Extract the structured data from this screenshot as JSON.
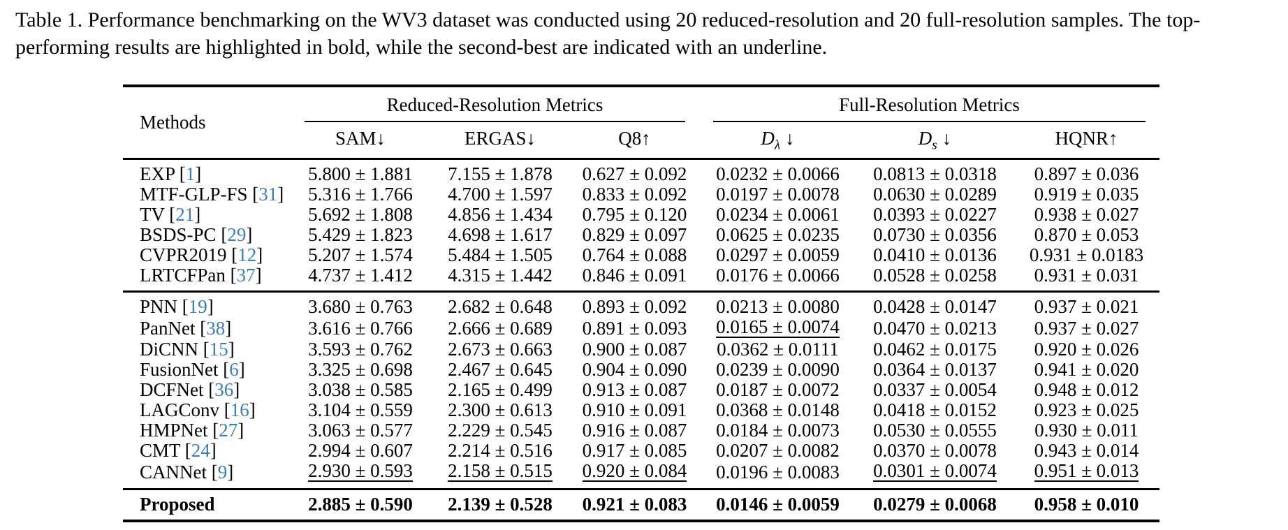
{
  "caption": {
    "text": "Table 1. Performance benchmarking on the WV3 dataset was conducted using 20 reduced-resolution and 20 full-resolution samples. The top-performing results are highlighted in bold, while the second-best are indicated with an underline."
  },
  "table": {
    "col_headers": {
      "methods": "Methods",
      "groups": [
        {
          "label": "Reduced-Resolution Metrics"
        },
        {
          "label": "Full-Resolution Metrics"
        }
      ],
      "metrics": [
        {
          "label": "SAM",
          "arrow": "↓"
        },
        {
          "label": "ERGAS",
          "arrow": "↓"
        },
        {
          "label": "Q8",
          "arrow": "↑"
        },
        {
          "label": "D",
          "sub": "λ",
          "arrow": "↓",
          "italic": true
        },
        {
          "label": "D",
          "sub": "s",
          "arrow": "↓",
          "italic": true
        },
        {
          "label": "HQNR",
          "arrow": "↑"
        }
      ]
    },
    "citation_color": "#3a7dbd",
    "row_groups": [
      {
        "rows": [
          {
            "method": "EXP",
            "cite": "1",
            "values": [
              {
                "v": "5.800 ± 1.881"
              },
              {
                "v": "7.155 ± 1.878"
              },
              {
                "v": "0.627 ± 0.092"
              },
              {
                "v": "0.0232 ± 0.0066"
              },
              {
                "v": "0.0813 ± 0.0318"
              },
              {
                "v": "0.897 ± 0.036"
              }
            ]
          },
          {
            "method": "MTF-GLP-FS",
            "cite": "31",
            "values": [
              {
                "v": "5.316 ± 1.766"
              },
              {
                "v": "4.700 ± 1.597"
              },
              {
                "v": "0.833 ± 0.092"
              },
              {
                "v": "0.0197 ± 0.0078"
              },
              {
                "v": "0.0630 ± 0.0289"
              },
              {
                "v": "0.919 ± 0.035"
              }
            ]
          },
          {
            "method": "TV",
            "cite": "21",
            "values": [
              {
                "v": "5.692 ± 1.808"
              },
              {
                "v": "4.856 ± 1.434"
              },
              {
                "v": "0.795 ± 0.120"
              },
              {
                "v": "0.0234 ± 0.0061"
              },
              {
                "v": "0.0393 ± 0.0227"
              },
              {
                "v": "0.938 ± 0.027"
              }
            ]
          },
          {
            "method": "BSDS-PC",
            "cite": "29",
            "values": [
              {
                "v": "5.429 ± 1.823"
              },
              {
                "v": "4.698 ± 1.617"
              },
              {
                "v": "0.829 ± 0.097"
              },
              {
                "v": "0.0625 ± 0.0235"
              },
              {
                "v": "0.0730 ± 0.0356"
              },
              {
                "v": "0.870 ± 0.053"
              }
            ]
          },
          {
            "method": "CVPR2019",
            "cite": "12",
            "values": [
              {
                "v": "5.207 ± 1.574"
              },
              {
                "v": "5.484 ± 1.505"
              },
              {
                "v": "0.764 ± 0.088"
              },
              {
                "v": "0.0297 ± 0.0059"
              },
              {
                "v": "0.0410 ± 0.0136"
              },
              {
                "v": "0.931 ± 0.0183"
              }
            ]
          },
          {
            "method": "LRTCFPan",
            "cite": "37",
            "values": [
              {
                "v": "4.737 ± 1.412"
              },
              {
                "v": "4.315 ± 1.442"
              },
              {
                "v": "0.846 ± 0.091"
              },
              {
                "v": "0.0176 ± 0.0066"
              },
              {
                "v": "0.0528 ± 0.0258"
              },
              {
                "v": "0.931 ± 0.031"
              }
            ]
          }
        ]
      },
      {
        "rows": [
          {
            "method": "PNN",
            "cite": "19",
            "values": [
              {
                "v": "3.680 ± 0.763"
              },
              {
                "v": "2.682 ± 0.648"
              },
              {
                "v": "0.893 ± 0.092"
              },
              {
                "v": "0.0213 ± 0.0080"
              },
              {
                "v": "0.0428 ± 0.0147"
              },
              {
                "v": "0.937 ± 0.021"
              }
            ]
          },
          {
            "method": "PanNet",
            "cite": "38",
            "values": [
              {
                "v": "3.616 ± 0.766"
              },
              {
                "v": "2.666 ± 0.689"
              },
              {
                "v": "0.891 ± 0.093"
              },
              {
                "v": "0.0165 ± 0.0074",
                "u": true
              },
              {
                "v": "0.0470 ± 0.0213"
              },
              {
                "v": "0.937 ± 0.027"
              }
            ]
          },
          {
            "method": "DiCNN",
            "cite": "15",
            "values": [
              {
                "v": "3.593 ± 0.762"
              },
              {
                "v": "2.673 ± 0.663"
              },
              {
                "v": "0.900 ± 0.087"
              },
              {
                "v": "0.0362 ± 0.0111"
              },
              {
                "v": "0.0462 ± 0.0175"
              },
              {
                "v": "0.920 ± 0.026"
              }
            ]
          },
          {
            "method": "FusionNet",
            "cite": "6",
            "values": [
              {
                "v": "3.325 ± 0.698"
              },
              {
                "v": "2.467 ± 0.645"
              },
              {
                "v": "0.904 ± 0.090"
              },
              {
                "v": "0.0239 ± 0.0090"
              },
              {
                "v": "0.0364 ± 0.0137"
              },
              {
                "v": "0.941 ± 0.020"
              }
            ]
          },
          {
            "method": "DCFNet",
            "cite": "36",
            "values": [
              {
                "v": "3.038 ± 0.585"
              },
              {
                "v": "2.165 ± 0.499"
              },
              {
                "v": "0.913 ± 0.087"
              },
              {
                "v": "0.0187 ± 0.0072"
              },
              {
                "v": "0.0337 ± 0.0054"
              },
              {
                "v": "0.948 ± 0.012"
              }
            ]
          },
          {
            "method": "LAGConv",
            "cite": "16",
            "values": [
              {
                "v": "3.104 ± 0.559"
              },
              {
                "v": "2.300 ± 0.613"
              },
              {
                "v": "0.910 ± 0.091"
              },
              {
                "v": "0.0368 ± 0.0148"
              },
              {
                "v": "0.0418 ± 0.0152"
              },
              {
                "v": "0.923 ± 0.025"
              }
            ]
          },
          {
            "method": "HMPNet",
            "cite": "27",
            "values": [
              {
                "v": "3.063 ± 0.577"
              },
              {
                "v": "2.229 ± 0.545"
              },
              {
                "v": "0.916 ± 0.087"
              },
              {
                "v": "0.0184 ± 0.0073"
              },
              {
                "v": "0.0530 ± 0.0555"
              },
              {
                "v": "0.930 ± 0.011"
              }
            ]
          },
          {
            "method": "CMT",
            "cite": "24",
            "values": [
              {
                "v": "2.994 ± 0.607"
              },
              {
                "v": "2.214 ± 0.516"
              },
              {
                "v": "0.917 ± 0.085"
              },
              {
                "v": "0.0207 ± 0.0082"
              },
              {
                "v": "0.0370 ± 0.0078"
              },
              {
                "v": "0.943 ± 0.014"
              }
            ]
          },
          {
            "method": "CANNet",
            "cite": "9",
            "values": [
              {
                "v": "2.930 ± 0.593",
                "u": true
              },
              {
                "v": "2.158 ± 0.515",
                "u": true
              },
              {
                "v": "0.920 ± 0.084",
                "u": true
              },
              {
                "v": "0.0196 ± 0.0083"
              },
              {
                "v": "0.0301 ± 0.0074",
                "u": true
              },
              {
                "v": "0.951 ± 0.013",
                "u": true
              }
            ]
          }
        ]
      },
      {
        "rows": [
          {
            "method": "Proposed",
            "bold": true,
            "values": [
              {
                "v": "2.885 ± 0.590",
                "b": true
              },
              {
                "v": "2.139 ± 0.528",
                "b": true
              },
              {
                "v": "0.921 ± 0.083",
                "b": true
              },
              {
                "v": "0.0146 ± 0.0059",
                "b": true
              },
              {
                "v": "0.0279 ± 0.0068",
                "b": true
              },
              {
                "v": "0.958 ± 0.010",
                "b": true
              }
            ]
          }
        ]
      }
    ]
  }
}
